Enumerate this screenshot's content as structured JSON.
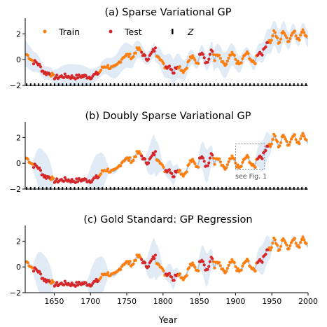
{
  "chart_data": [
    {
      "type": "scatter",
      "title": "(a) Sparse Variational GP",
      "ylim": [
        -2,
        3
      ],
      "yticks": [
        -2,
        0,
        2
      ],
      "xlim": [
        1610,
        2000
      ],
      "legend": {
        "placement": "top-left",
        "entries": [
          {
            "label": "Train",
            "color": "#ff7f0e"
          },
          {
            "label": "Test",
            "color": "#d62728"
          },
          {
            "label": "Z",
            "color": "#000000",
            "style": "italic"
          }
        ]
      },
      "inducing_points": "dense row of markers along y = -2 spanning 1612–1998",
      "band": "wide uncertainty band following the data",
      "grid": false
    },
    {
      "type": "scatter",
      "title": "(b) Doubly Sparse Variational GP",
      "ylim": [
        -2,
        3
      ],
      "yticks": [
        -2,
        0,
        2
      ],
      "xlim": [
        1610,
        2000
      ],
      "annotation": {
        "text": "see Fig. 1",
        "box_x": [
          1900,
          1940
        ],
        "box_y": [
          -0.5,
          1.5
        ]
      },
      "inducing_points": "dense row of markers along y = -2 spanning 1612–1998",
      "band": "narrow band, wide around test gaps",
      "grid": false
    },
    {
      "type": "scatter",
      "title": "(c) Gold Standard: GP Regression",
      "ylim": [
        -2,
        3
      ],
      "yticks": [
        -2,
        0,
        2
      ],
      "xlim": [
        1610,
        2000
      ],
      "xticks": [
        1650,
        1700,
        1750,
        1800,
        1850,
        1900,
        1950,
        2000
      ],
      "xlabel": "Year",
      "band": "narrow band, wide around test gaps",
      "grid": false
    }
  ],
  "series_info": {
    "train_color": "#ff7f0e",
    "test_color": "#d62728",
    "band_color": "#c6dbef",
    "mean_color": "#a9c3dc",
    "test_ranges": [
      [
        1620,
        1645
      ],
      [
        1650,
        1712
      ],
      [
        1770,
        1790
      ],
      [
        1803,
        1820
      ],
      [
        1850,
        1868
      ],
      [
        1930,
        1945
      ]
    ]
  }
}
